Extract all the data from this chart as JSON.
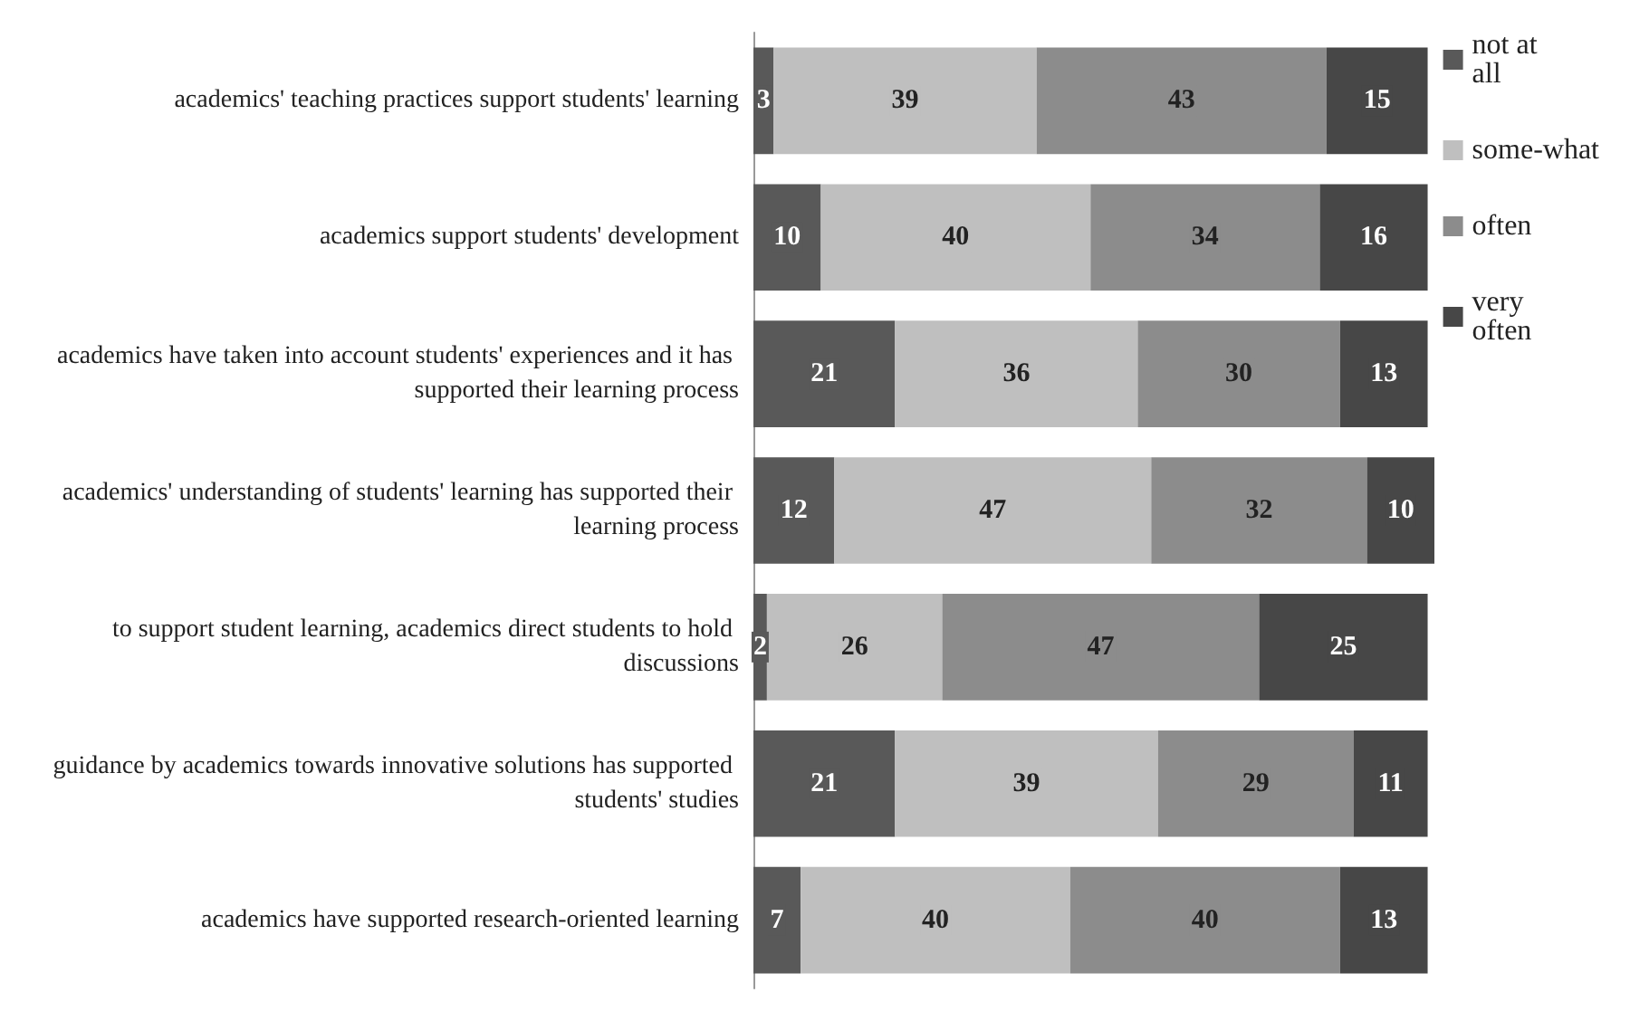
{
  "chart_data": {
    "type": "bar",
    "orientation": "horizontal",
    "stacked": true,
    "data_labels": true,
    "legend": "top right",
    "grid": false,
    "tick_labels": "y",
    "categories": [
      "academics' teaching practices support students' learning",
      "academics support students' development",
      "academics have taken into account students' experiences and it has supported their learning process",
      "academics' understanding of students' learning has supported their learning process",
      "to support student learning, academics direct students to hold discussions",
      "guidance by academics towards innovative solutions has supported students' studies",
      "academics have supported research-oriented learning"
    ],
    "series": [
      {
        "name": "not at all",
        "color": "#595959",
        "values": [
          3,
          10,
          21,
          12,
          2,
          21,
          7
        ]
      },
      {
        "name": "some-what",
        "color": "#bfbfbf",
        "values": [
          39,
          40,
          36,
          47,
          26,
          39,
          40
        ]
      },
      {
        "name": "often",
        "color": "#8c8c8c",
        "values": [
          43,
          34,
          30,
          32,
          47,
          29,
          40
        ]
      },
      {
        "name": "very often",
        "color": "#474747",
        "values": [
          15,
          16,
          13,
          10,
          25,
          11,
          13
        ]
      }
    ]
  }
}
